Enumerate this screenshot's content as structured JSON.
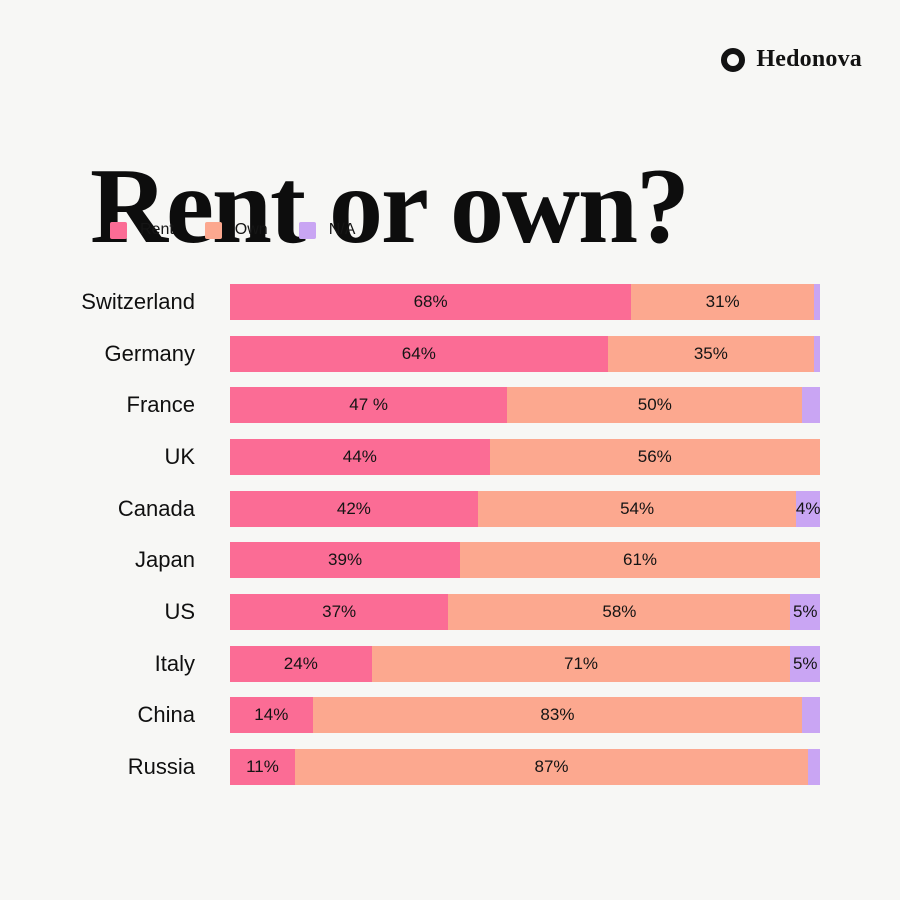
{
  "brand": {
    "name": "Hedonova",
    "logo_icon": "ring-icon"
  },
  "header": {
    "title": "Rent or own?"
  },
  "colors": {
    "background": "#F7F7F5",
    "rent": "#FB6C95",
    "own": "#FCA88F",
    "na": "#C9A5F3",
    "text": "#111111"
  },
  "legend": {
    "items": [
      {
        "label": "Rent",
        "color": "#FB6C95"
      },
      {
        "label": "Own",
        "color": "#FCA88F"
      },
      {
        "label": "N/A",
        "color": "#C9A5F3"
      }
    ]
  },
  "chart_data": {
    "type": "bar",
    "stacked": true,
    "orientation": "horizontal",
    "title": "Rent or own?",
    "xlabel": "",
    "ylabel": "",
    "xlim": [
      0,
      100
    ],
    "grid": false,
    "legend_position": "top-left",
    "categories": [
      "Switzerland",
      "Germany",
      "France",
      "UK",
      "Canada",
      "Japan",
      "US",
      "Italy",
      "China",
      "Russia"
    ],
    "series": [
      {
        "name": "Rent",
        "color": "#FB6C95",
        "values": [
          68,
          64,
          47,
          44,
          42,
          39,
          37,
          24,
          14,
          11
        ],
        "labels": [
          "68%",
          "64%",
          "47 %",
          "44%",
          "42%",
          "39%",
          "37%",
          "24%",
          "14%",
          "11%"
        ]
      },
      {
        "name": "Own",
        "color": "#FCA88F",
        "values": [
          31,
          35,
          50,
          56,
          54,
          61,
          58,
          71,
          83,
          87
        ],
        "labels": [
          "31%",
          "35%",
          "50%",
          "56%",
          "54%",
          "61%",
          "58%",
          "71%",
          "83%",
          "87%"
        ]
      },
      {
        "name": "N/A",
        "color": "#C9A5F3",
        "values": [
          1,
          1,
          3,
          0,
          4,
          0,
          5,
          5,
          3,
          2
        ],
        "labels": [
          "",
          "",
          "",
          "",
          "4%",
          "",
          "5%",
          "5%",
          "",
          ""
        ]
      }
    ]
  }
}
